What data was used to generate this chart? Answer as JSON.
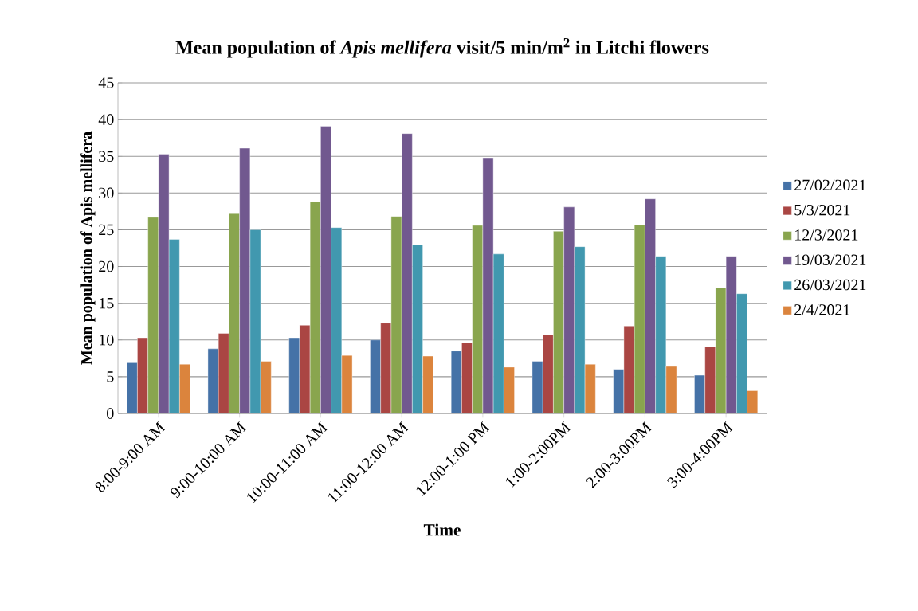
{
  "chart_data": {
    "type": "bar",
    "title": "Mean population of *Apis mellifera* visit/5 min/m$^{2}$ in Litchi flowers",
    "xlabel": "Time",
    "ylabel": "Mean population of Apis mellifera",
    "categories": [
      "8:00-9:00 AM",
      "9:00-10:00 AM",
      "10:00-11:00 AM",
      "11:00-12:00 AM",
      "12:00-1:00 PM",
      "1:00-2:00PM",
      "2:00-3:00PM",
      "3:00-4:00PM"
    ],
    "series": [
      {
        "name": "27/02/2021",
        "color": "#4572a7",
        "values": [
          6.9,
          8.8,
          10.3,
          10.0,
          8.5,
          7.1,
          6.0,
          5.2
        ]
      },
      {
        "name": "5/3/2021",
        "color": "#aa4643",
        "values": [
          10.3,
          10.9,
          12.0,
          12.3,
          9.6,
          10.7,
          11.9,
          9.1
        ]
      },
      {
        "name": "12/3/2021",
        "color": "#89a54e",
        "values": [
          26.7,
          27.2,
          28.8,
          26.8,
          25.6,
          24.8,
          25.7,
          17.1
        ]
      },
      {
        "name": "19/03/2021",
        "color": "#71588f",
        "values": [
          35.3,
          36.1,
          39.1,
          38.1,
          34.8,
          28.1,
          29.2,
          21.4
        ]
      },
      {
        "name": "26/03/2021",
        "color": "#4198af",
        "values": [
          23.7,
          25.0,
          25.3,
          23.0,
          21.7,
          22.7,
          21.4,
          16.3
        ]
      },
      {
        "name": "2/4/2021",
        "color": "#db843d",
        "values": [
          6.7,
          7.1,
          7.9,
          7.8,
          6.3,
          6.7,
          6.4,
          3.1
        ]
      }
    ],
    "ylim": [
      0,
      45
    ],
    "yticks": [
      0,
      5,
      10,
      15,
      20,
      25,
      30,
      35,
      40,
      45
    ],
    "grid": "y",
    "legend": "right"
  }
}
